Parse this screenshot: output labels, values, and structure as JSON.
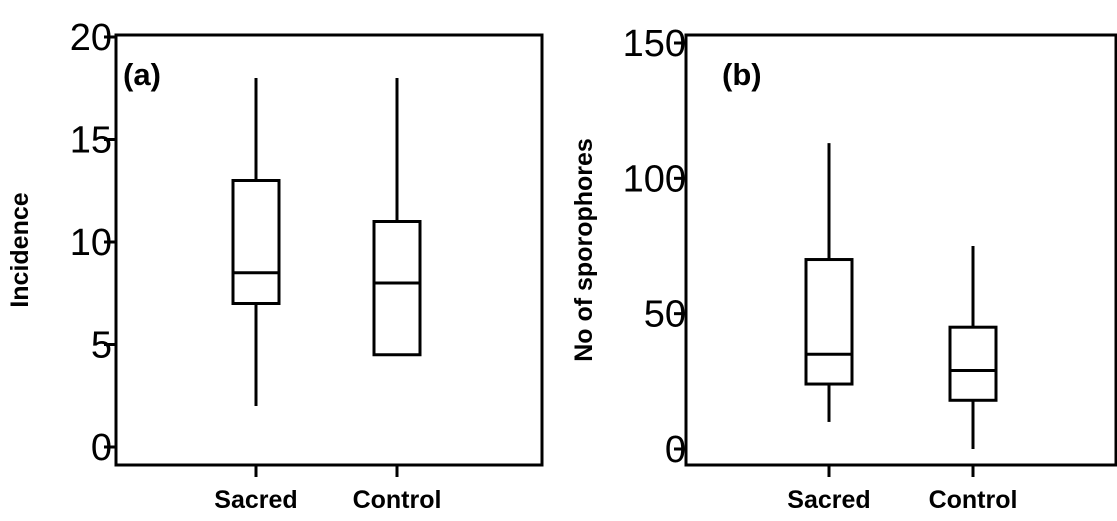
{
  "chart_data": [
    {
      "type": "box",
      "panel_label": "(a)",
      "ylabel": "Incidence",
      "xlabel": "",
      "ylim": [
        0,
        20
      ],
      "yticks": [
        0,
        5,
        10,
        15,
        20
      ],
      "categories": [
        "Sacred",
        "Control"
      ],
      "boxes": [
        {
          "category": "Sacred",
          "min": 2,
          "q1": 7,
          "median": 8.5,
          "q3": 13,
          "max": 18
        },
        {
          "category": "Control",
          "min": 4.5,
          "q1": 4.5,
          "median": 8,
          "q3": 11,
          "max": 18
        }
      ]
    },
    {
      "type": "box",
      "panel_label": "(b)",
      "ylabel": "No of sporophores",
      "xlabel": "",
      "ylim": [
        0,
        150
      ],
      "yticks": [
        0,
        50,
        100,
        150
      ],
      "categories": [
        "Sacred",
        "Control"
      ],
      "boxes": [
        {
          "category": "Sacred",
          "min": 10,
          "q1": 24,
          "median": 35,
          "q3": 70,
          "max": 113
        },
        {
          "category": "Control",
          "min": 0,
          "q1": 18,
          "median": 29,
          "q3": 45,
          "max": 75
        }
      ]
    }
  ]
}
